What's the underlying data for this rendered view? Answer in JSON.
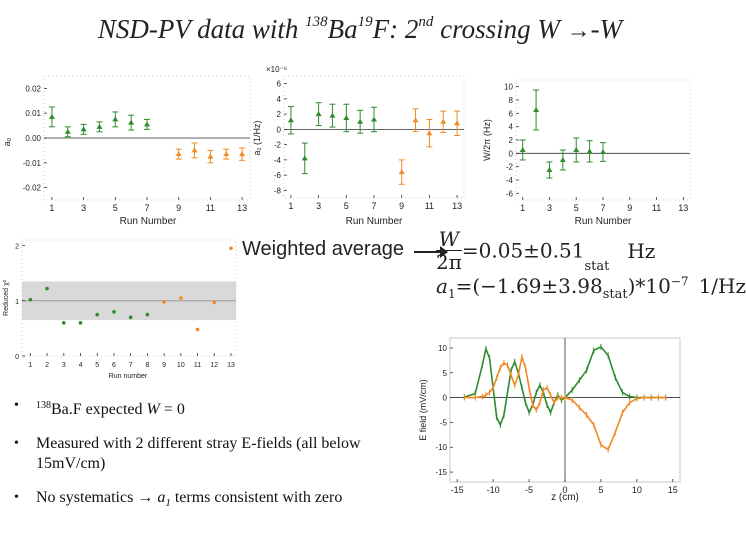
{
  "title": {
    "pre": "NSD-PV data with ",
    "iso1": "138",
    "mid": "Ba",
    "iso2": "19",
    "post": "F: 2",
    "nd": "nd",
    "tail": " crossing W ",
    "arrow": "→",
    "end": "-W"
  },
  "weighted_average_label": "Weighted average",
  "formula1": {
    "lhs_num": "W",
    "lhs_den": "2π",
    "eq": "=0.05±0.51",
    "stat": "stat",
    "unit": "Hz"
  },
  "formula2": {
    "lhs": "a",
    "sub": "1",
    "eq": "=(−1.69±3.98",
    "stat": "stat",
    "rest": ")*10",
    "exp": "−7",
    "unit": "1/Hz"
  },
  "bullets": [
    {
      "parts": [
        "138",
        "Ba.F expected ",
        "W",
        " = 0"
      ]
    },
    {
      "text": "Measured with 2 different stray E-fields  (all below 15mV/cm)"
    },
    {
      "pre": "No systematics ",
      "arrow": "→",
      "a": "a",
      "sub": "1",
      "post": " terms consistent with zero"
    }
  ],
  "colors": {
    "green": "#2e8b2e",
    "orange": "#f08a24",
    "band": "#d9d9d9",
    "axis": "#222222"
  },
  "chart_data": [
    {
      "type": "scatter",
      "title": "",
      "xlabel": "Run Number",
      "ylabel": "a₀",
      "xticks": [
        "1",
        "3",
        "5",
        "7",
        "9",
        "11",
        "13"
      ],
      "yticks": [
        "0.02",
        "0.01",
        "0.00",
        "-0.01",
        "-0.02"
      ],
      "xlim": [
        0.5,
        13.5
      ],
      "ylim": [
        -0.025,
        0.025
      ],
      "series": [
        {
          "color": "green",
          "x": [
            1,
            2,
            3,
            4,
            5,
            6,
            7
          ],
          "y": [
            0.0085,
            0.0025,
            0.0035,
            0.0045,
            0.0075,
            0.0062,
            0.0055
          ],
          "err": [
            0.004,
            0.002,
            0.002,
            0.002,
            0.003,
            0.003,
            0.002
          ]
        },
        {
          "color": "orange",
          "x": [
            9,
            10,
            11,
            12,
            13
          ],
          "y": [
            -0.0065,
            -0.005,
            -0.0075,
            -0.0065,
            -0.0065
          ],
          "err": [
            0.002,
            0.003,
            0.0025,
            0.002,
            0.0025
          ]
        }
      ]
    },
    {
      "type": "scatter",
      "title": "",
      "scale_label": "×10⁻⁶",
      "xlabel": "Run Number",
      "ylabel": "a₁ (1/Hz)",
      "xticks": [
        "1",
        "3",
        "5",
        "7",
        "9",
        "11",
        "13"
      ],
      "yticks": [
        "6",
        "4",
        "2",
        "0",
        "-2",
        "-4",
        "-6",
        "-8"
      ],
      "xlim": [
        0.5,
        13.5
      ],
      "ylim": [
        -9,
        7
      ],
      "series": [
        {
          "color": "green",
          "x": [
            1,
            2,
            3,
            4,
            5,
            6,
            7
          ],
          "y": [
            1.2,
            -3.8,
            2.0,
            1.8,
            1.5,
            1.0,
            1.3
          ],
          "err": [
            1.8,
            2.0,
            1.5,
            1.5,
            1.8,
            1.5,
            1.6
          ]
        },
        {
          "color": "orange",
          "x": [
            9,
            10,
            11,
            12,
            13
          ],
          "y": [
            -5.6,
            1.2,
            -0.5,
            1.0,
            0.8
          ],
          "err": [
            1.6,
            1.5,
            1.8,
            1.4,
            1.6
          ]
        }
      ]
    },
    {
      "type": "scatter",
      "title": "",
      "xlabel": "Run Number",
      "ylabel": "W/2π (Hz)",
      "xticks": [
        "1",
        "3",
        "5",
        "7",
        "9",
        "11",
        "13"
      ],
      "yticks": [
        "10",
        "8",
        "6",
        "4",
        "2",
        "0",
        "-2",
        "-4",
        "-6"
      ],
      "xlim": [
        0.5,
        13.5
      ],
      "ylim": [
        -7,
        11
      ],
      "series": [
        {
          "color": "green",
          "x": [
            1,
            2,
            3,
            4,
            5,
            6,
            7
          ],
          "y": [
            0.5,
            6.5,
            -2.5,
            -1.0,
            0.5,
            0.3,
            0.2
          ],
          "err": [
            1.5,
            3.0,
            1.2,
            1.5,
            1.8,
            1.6,
            1.4
          ]
        },
        {
          "color": "orange",
          "x": [],
          "y": [],
          "err": []
        }
      ]
    },
    {
      "type": "scatter",
      "title": "",
      "xlabel": "Run number",
      "ylabel": "Reduced χ²",
      "xticks": [
        "1",
        "2",
        "3",
        "4",
        "5",
        "6",
        "7",
        "8",
        "9",
        "10",
        "11",
        "12",
        "13"
      ],
      "yticks": [
        "0",
        "1",
        "2"
      ],
      "xlim": [
        0.5,
        13.3
      ],
      "ylim": [
        0,
        2.1
      ],
      "band": [
        0.65,
        1.35
      ],
      "series": [
        {
          "color": "green",
          "x": [
            1,
            2,
            3,
            4,
            5,
            6,
            7,
            8
          ],
          "y": [
            1.02,
            1.22,
            0.6,
            0.6,
            0.75,
            0.8,
            0.7,
            0.75
          ]
        },
        {
          "color": "orange",
          "x": [
            9,
            10,
            11,
            12,
            13
          ],
          "y": [
            0.98,
            1.05,
            0.48,
            0.97,
            1.95
          ]
        }
      ]
    },
    {
      "type": "line",
      "title": "",
      "xlabel": "z (cm)",
      "ylabel": "E field (mV/cm)",
      "xticks": [
        "-15",
        "-10",
        "-5",
        "0",
        "5",
        "10",
        "15"
      ],
      "yticks": [
        "10",
        "5",
        "0",
        "-5",
        "-10",
        "-15"
      ],
      "xlim": [
        -16,
        16
      ],
      "ylim": [
        -17,
        12
      ],
      "series": [
        {
          "color": "green",
          "x": [
            -14,
            -12.5,
            -11.5,
            -11,
            -10.5,
            -10,
            -9.5,
            -9,
            -8.5,
            -8,
            -7.5,
            -7,
            -6.5,
            -6,
            -5.5,
            -5,
            -4.5,
            -4,
            -3.5,
            -3,
            -2.5,
            -2,
            -1.5,
            -1,
            -0.5,
            0,
            1,
            2,
            3,
            4,
            5,
            6,
            7,
            8,
            9,
            10,
            11,
            12,
            13,
            14
          ],
          "y": [
            0.1,
            0.8,
            6.5,
            9.8,
            8.0,
            2.0,
            -4.0,
            -5.5,
            -3.5,
            1.0,
            5.5,
            7.2,
            5.0,
            2.0,
            -1.0,
            -3.0,
            -1.5,
            1.0,
            2.5,
            1.0,
            -1.5,
            -3.0,
            -1.0,
            0.5,
            -0.5,
            0.0,
            1.5,
            3.5,
            5.5,
            9.5,
            10.2,
            8.5,
            4.0,
            1.0,
            0.2,
            0.0,
            0.0,
            0.0,
            0.0,
            0.0
          ]
        },
        {
          "color": "orange",
          "x": [
            -14,
            -12.5,
            -11.5,
            -11,
            -10.5,
            -10,
            -9.5,
            -9,
            -8.5,
            -8,
            -7.5,
            -7,
            -6.5,
            -6,
            -5.5,
            -5,
            -4.5,
            -4,
            -3.5,
            -3,
            -2.5,
            -2,
            -1.5,
            -1,
            -0.5,
            0,
            1,
            2,
            3,
            4,
            5,
            6,
            7,
            8,
            9,
            10,
            11,
            12,
            13,
            14
          ],
          "y": [
            0.0,
            0.0,
            0.2,
            0.5,
            1.0,
            2.0,
            4.0,
            6.0,
            7.0,
            6.5,
            4.5,
            2.5,
            4.5,
            8.2,
            6.0,
            2.0,
            -1.5,
            -2.5,
            -1.0,
            1.5,
            2.0,
            0.5,
            -1.0,
            0.0,
            0.0,
            0.0,
            -0.5,
            -2.0,
            -3.5,
            -5.5,
            -9.5,
            -10.5,
            -7.0,
            -3.0,
            -1.0,
            -0.2,
            0.0,
            0.0,
            0.0,
            0.0
          ]
        }
      ]
    }
  ]
}
